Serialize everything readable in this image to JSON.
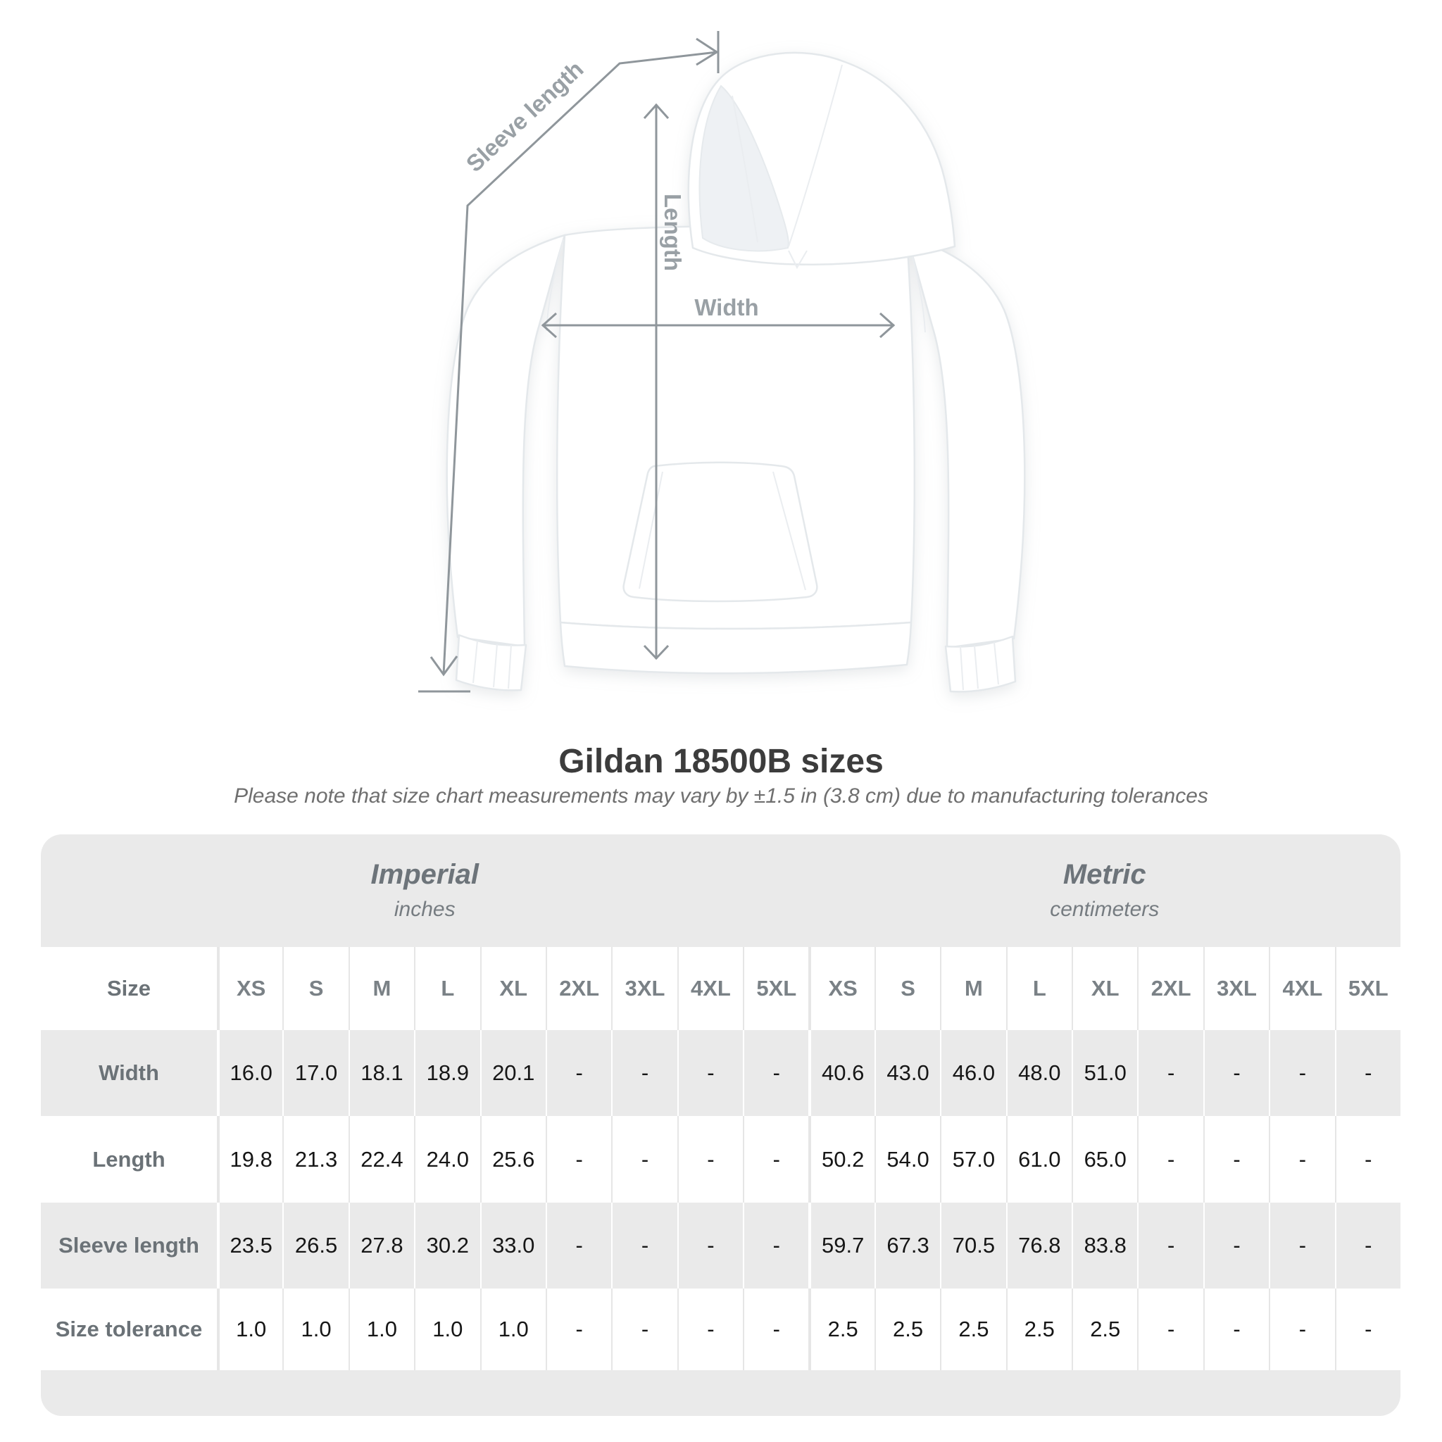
{
  "title": "Gildan 18500B sizes",
  "subtitle": "Please note that size chart measurements may vary by ±1.5 in (3.8 cm) due to manufacturing tolerances",
  "diagram": {
    "annotations": {
      "sleeve_length": "Sleeve length",
      "length": "Length",
      "width": "Width"
    },
    "line_color": "#8f969b"
  },
  "table": {
    "groups": [
      {
        "label": "Imperial",
        "sublabel": "inches"
      },
      {
        "label": "Metric",
        "sublabel": "centimeters"
      }
    ],
    "size_header": "Size",
    "sizes": [
      "XS",
      "S",
      "M",
      "L",
      "XL",
      "2XL",
      "3XL",
      "4XL",
      "5XL"
    ],
    "rows": [
      {
        "label": "Width",
        "imperial": [
          "16.0",
          "17.0",
          "18.1",
          "18.9",
          "20.1",
          "-",
          "-",
          "-",
          "-"
        ],
        "metric": [
          "40.6",
          "43.0",
          "46.0",
          "48.0",
          "51.0",
          "-",
          "-",
          "-",
          "-"
        ]
      },
      {
        "label": "Length",
        "imperial": [
          "19.8",
          "21.3",
          "22.4",
          "24.0",
          "25.6",
          "-",
          "-",
          "-",
          "-"
        ],
        "metric": [
          "50.2",
          "54.0",
          "57.0",
          "61.0",
          "65.0",
          "-",
          "-",
          "-",
          "-"
        ]
      },
      {
        "label": "Sleeve length",
        "imperial": [
          "23.5",
          "26.5",
          "27.8",
          "30.2",
          "33.0",
          "-",
          "-",
          "-",
          "-"
        ],
        "metric": [
          "59.7",
          "67.3",
          "70.5",
          "76.8",
          "83.8",
          "-",
          "-",
          "-",
          "-"
        ]
      },
      {
        "label": "Size tolerance",
        "imperial": [
          "1.0",
          "1.0",
          "1.0",
          "1.0",
          "1.0",
          "-",
          "-",
          "-",
          "-"
        ],
        "metric": [
          "2.5",
          "2.5",
          "2.5",
          "2.5",
          "2.5",
          "-",
          "-",
          "-",
          "-"
        ]
      }
    ],
    "colors": {
      "band": "#eaeaea",
      "row_alt": "#eaeaea",
      "separator_on_white": "#e6e6e6",
      "separator_on_gray": "#ffffff"
    }
  },
  "chart_data": {
    "type": "table",
    "title": "Gildan 18500B sizes",
    "note": "Please note that size chart measurements may vary by ±1.5 in (3.8 cm) due to manufacturing tolerances",
    "categories": [
      "XS",
      "S",
      "M",
      "L",
      "XL",
      "2XL",
      "3XL",
      "4XL",
      "5XL"
    ],
    "series": [
      {
        "name": "Width (in)",
        "values": [
          16.0,
          17.0,
          18.1,
          18.9,
          20.1,
          null,
          null,
          null,
          null
        ]
      },
      {
        "name": "Length (in)",
        "values": [
          19.8,
          21.3,
          22.4,
          24.0,
          25.6,
          null,
          null,
          null,
          null
        ]
      },
      {
        "name": "Sleeve length (in)",
        "values": [
          23.5,
          26.5,
          27.8,
          30.2,
          33.0,
          null,
          null,
          null,
          null
        ]
      },
      {
        "name": "Size tolerance (in)",
        "values": [
          1.0,
          1.0,
          1.0,
          1.0,
          1.0,
          null,
          null,
          null,
          null
        ]
      },
      {
        "name": "Width (cm)",
        "values": [
          40.6,
          43.0,
          46.0,
          48.0,
          51.0,
          null,
          null,
          null,
          null
        ]
      },
      {
        "name": "Length (cm)",
        "values": [
          50.2,
          54.0,
          57.0,
          61.0,
          65.0,
          null,
          null,
          null,
          null
        ]
      },
      {
        "name": "Sleeve length (cm)",
        "values": [
          59.7,
          67.3,
          70.5,
          76.8,
          83.8,
          null,
          null,
          null,
          null
        ]
      },
      {
        "name": "Size tolerance (cm)",
        "values": [
          2.5,
          2.5,
          2.5,
          2.5,
          2.5,
          null,
          null,
          null,
          null
        ]
      }
    ]
  }
}
